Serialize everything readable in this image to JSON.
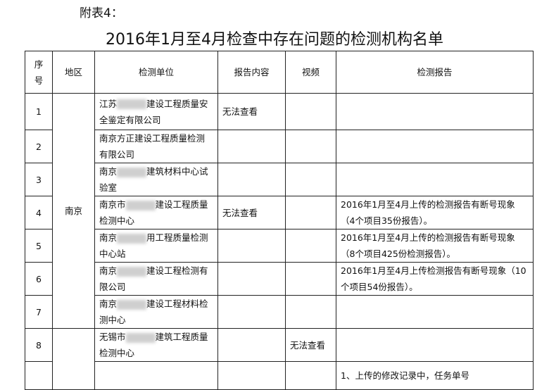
{
  "annex_label": "附表4：",
  "title": "2016年1月至4月检查中存在问题的检测机构名单",
  "headers": {
    "no": "序号",
    "region": "地区",
    "unit": "检测单位",
    "content": "报告内容",
    "video": "视频",
    "report": "检测报告"
  },
  "region_nanjing": "南京",
  "rows": [
    {
      "no": "1",
      "unit_a": "江苏",
      "unit_b": "建设工程质量安全鉴定有限公司",
      "content": "无法查看",
      "video": "",
      "report": ""
    },
    {
      "no": "2",
      "unit_a": "南京方正建设工程质量检测有限公司",
      "unit_b": "",
      "content": "",
      "video": "",
      "report": ""
    },
    {
      "no": "3",
      "unit_a": "南京",
      "unit_b": "建筑材料中心试验室",
      "content": "",
      "video": "",
      "report": ""
    },
    {
      "no": "4",
      "unit_a": "南京市",
      "unit_b": "建设工程质量检测中心",
      "content": "无法查看",
      "video": "",
      "report": "2016年1月至4月上传的检测报告有断号现象（4个项目35份报告）。"
    },
    {
      "no": "5",
      "unit_a": "南京",
      "unit_b": "用工程质量检测中心站",
      "content": "",
      "video": "",
      "report": "2016年1月至4月上传的检测报告有断号现象（8个项目425份检测报告）。"
    },
    {
      "no": "6",
      "unit_a": "南京",
      "unit_b": "建设工程检测有限公司",
      "content": "",
      "video": "",
      "report": "2016年1月至4月上传检测报告有断号现象（10个项目54份报告）。"
    },
    {
      "no": "7",
      "unit_a": "南京",
      "unit_b": "建设工程材料检测中心",
      "content": "",
      "video": "",
      "report": ""
    },
    {
      "no": "8",
      "unit_a": "无锡市",
      "unit_b": "建筑工程质量检测中心",
      "content": "",
      "video": "无法查看",
      "report": ""
    },
    {
      "no": "",
      "unit_a": "",
      "unit_b": "",
      "content": "",
      "video": "",
      "report": "1、上传的修改记录中，任务单号"
    }
  ]
}
